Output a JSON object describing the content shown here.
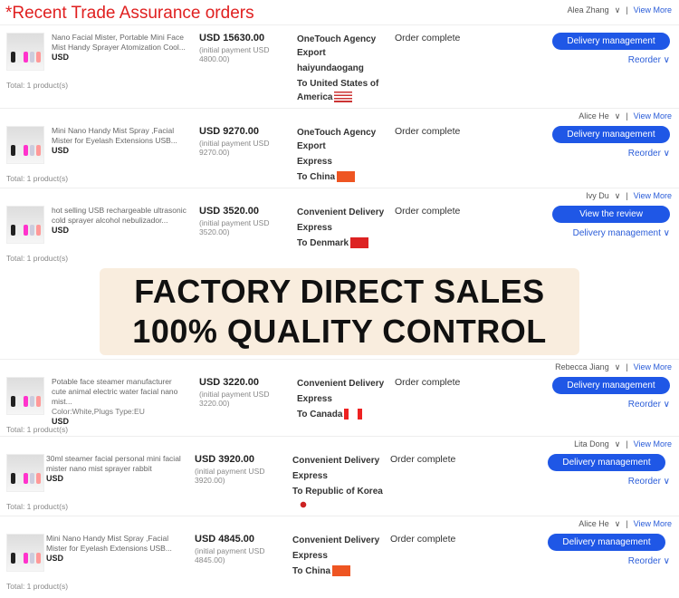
{
  "page": {
    "title": "*Recent Trade Assurance orders",
    "view_more": "View More"
  },
  "sellers": [
    "Alea Zhang",
    "Alice He",
    "Ivy Du",
    "Rebecca Jiang",
    "Lita Dong",
    "Alice He"
  ],
  "overlay": {
    "line1": "FACTORY DIRECT SALES",
    "line2": "100% QUALITY CONTROL"
  },
  "orders": [
    {
      "title": "Nano Facial Mister, Portable Mini Face Mist Handy Sprayer Atomization Cool...",
      "extra": "",
      "usd": "USD",
      "total": "Total:  1 product(s)",
      "price": "USD 15630.00",
      "initial": "(initial payment USD 4800.00)",
      "ship": [
        "OneTouch Agency Export",
        "haiyundaogang",
        "To United States of America"
      ],
      "flag": "us",
      "status": "Order complete",
      "button": "Delivery management",
      "link": "Reorder ∨"
    },
    {
      "title": "Mini Nano Handy Mist Spray ,Facial Mister for Eyelash Extensions USB...",
      "extra": "",
      "usd": "USD",
      "total": "Total:  1 product(s)",
      "price": "USD 9270.00",
      "initial": "(initial payment USD 9270.00)",
      "ship": [
        "OneTouch Agency Export",
        "Express",
        "To China"
      ],
      "flag": "cn",
      "status": "Order complete",
      "button": "Delivery management",
      "link": "Reorder ∨"
    },
    {
      "title": "hot selling USB rechargeable ultrasonic cold sprayer alcohol nebulizador...",
      "extra": "",
      "usd": "USD",
      "total": "Total:  1 product(s)",
      "price": "USD 3520.00",
      "initial": "(initial payment USD 3520.00)",
      "ship": [
        "Convenient Delivery",
        "Express",
        "To Denmark"
      ],
      "flag": "dk",
      "status": "Order complete",
      "button": "View the review",
      "link": "Delivery management ∨"
    },
    {
      "title": "Potable face steamer manufacturer cute animal electric water facial nano mist...",
      "extra": "Color:White,Plugs Type:EU",
      "usd": "USD",
      "total": "Total:  1 product(s)",
      "price": "USD 3220.00",
      "initial": "(initial payment USD 3220.00)",
      "ship": [
        "Convenient Delivery",
        "Express",
        "To Canada"
      ],
      "flag": "ca",
      "status": "Order complete",
      "button": "Delivery management",
      "link": "Reorder ∨"
    },
    {
      "title": "30ml steamer facial personal mini facial mister nano mist sprayer rabbit",
      "extra": "",
      "usd": "USD",
      "total": "Total:  1 product(s)",
      "price": "USD 3920.00",
      "initial": "(initial payment USD 3920.00)",
      "ship": [
        "Convenient Delivery",
        "Express",
        "To Republic of Korea"
      ],
      "flag": "kr",
      "status": "Order complete",
      "button": "Delivery management",
      "link": "Reorder ∨"
    },
    {
      "title": "Mini Nano Handy Mist Spray ,Facial Mister for Eyelash Extensions USB...",
      "extra": "",
      "usd": "USD",
      "total": "Total:  1 product(s)",
      "price": "USD 4845.00",
      "initial": "(initial payment USD 4845.00)",
      "ship": [
        "Convenient Delivery",
        "Express",
        "To China"
      ],
      "flag": "cn",
      "status": "Order complete",
      "button": "Delivery management",
      "link": "Reorder ∨"
    }
  ]
}
